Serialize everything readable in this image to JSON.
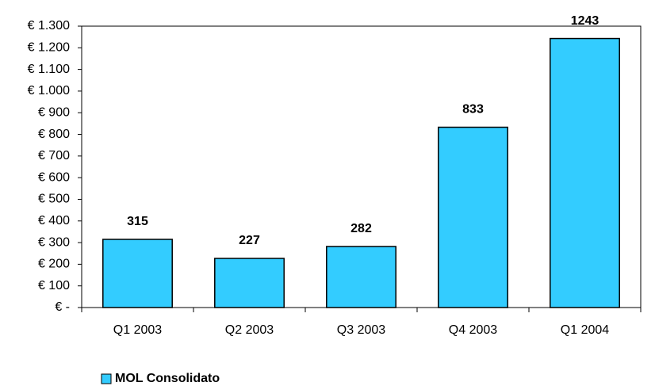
{
  "chart_data": {
    "type": "bar",
    "categories": [
      "Q1 2003",
      "Q2 2003",
      "Q3 2003",
      "Q4 2003",
      "Q1 2004"
    ],
    "series": [
      {
        "name": "MOL Consolidato",
        "color": "#33ccff",
        "values": [
          315,
          227,
          282,
          833,
          1243
        ]
      }
    ],
    "ylim": [
      0,
      1300
    ],
    "yticks": [
      {
        "value": 0,
        "label": "€ -"
      },
      {
        "value": 100,
        "label": "€ 100"
      },
      {
        "value": 200,
        "label": "€ 200"
      },
      {
        "value": 300,
        "label": "€ 300"
      },
      {
        "value": 400,
        "label": "€ 400"
      },
      {
        "value": 500,
        "label": "€ 500"
      },
      {
        "value": 600,
        "label": "€ 600"
      },
      {
        "value": 700,
        "label": "€ 700"
      },
      {
        "value": 800,
        "label": "€ 800"
      },
      {
        "value": 900,
        "label": "€ 900"
      },
      {
        "value": 1000,
        "label": "€ 1.000"
      },
      {
        "value": 1100,
        "label": "€ 1.100"
      },
      {
        "value": 1200,
        "label": "€ 1.200"
      },
      {
        "value": 1300,
        "label": "€ 1.300"
      }
    ],
    "grid": false,
    "legend": "bottom-left"
  }
}
